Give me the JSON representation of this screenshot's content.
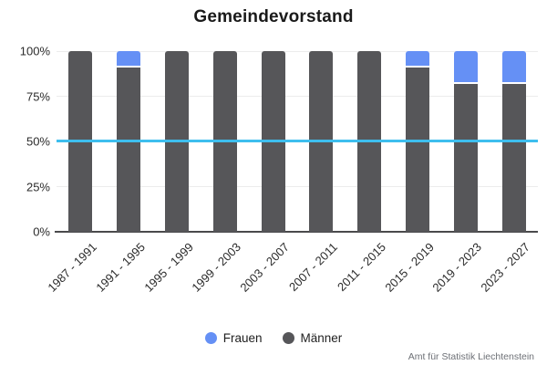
{
  "title": "Gemeindevorstand",
  "attribution": "Amt für Statistik Liechtenstein",
  "colors": {
    "frauen": "#6590F5",
    "maenner": "#565659",
    "reference_line": "#3EBEEE",
    "gridline": "#ececec",
    "axis_line": "#4a4a4c",
    "title_text": "#1a1a1a",
    "tick_text": "#2b2b2b",
    "attribution_text": "#6d7076"
  },
  "y_axis": {
    "ticks": [
      {
        "label": "100%",
        "value": 100
      },
      {
        "label": "75%",
        "value": 75
      },
      {
        "label": "50%",
        "value": 50
      },
      {
        "label": "25%",
        "value": 25
      },
      {
        "label": "0%",
        "value": 0
      }
    ]
  },
  "legend": [
    {
      "label": "Frauen",
      "color": "#6590F5"
    },
    {
      "label": "Männer",
      "color": "#565659"
    }
  ],
  "chart_data": {
    "type": "bar",
    "stacked": true,
    "title": "Gemeindevorstand",
    "categories": [
      "1987 - 1991",
      "1991 - 1995",
      "1995 - 1999",
      "1999 - 2003",
      "2003 - 2007",
      "2007 - 2011",
      "2011 - 2015",
      "2015 - 2019",
      "2019 - 2023",
      "2023 - 2027"
    ],
    "series": [
      {
        "name": "Frauen",
        "color": "#6590F5",
        "values": [
          0,
          9.1,
          0,
          0,
          0,
          0,
          0,
          9.1,
          18.2,
          18.2
        ]
      },
      {
        "name": "Männer",
        "color": "#565659",
        "values": [
          100,
          90.9,
          100,
          100,
          100,
          100,
          100,
          90.9,
          81.8,
          81.8
        ]
      }
    ],
    "xlabel": "",
    "ylabel": "",
    "ylim": [
      0,
      100
    ],
    "grid": true,
    "legend_position": "bottom",
    "reference_line": {
      "value": 50,
      "color": "#3EBEEE"
    }
  }
}
